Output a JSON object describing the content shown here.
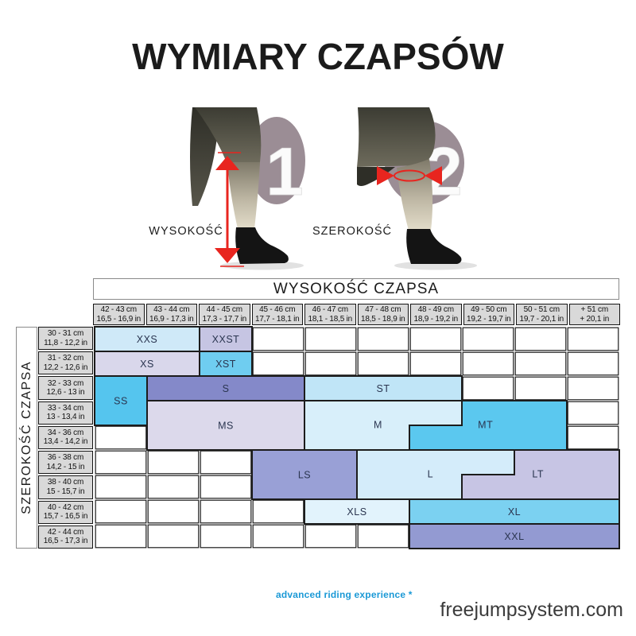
{
  "title": "WYMIARY CZAPSÓW",
  "figures": [
    {
      "number": "1",
      "label": "WYSOKOŚĆ"
    },
    {
      "number": "2",
      "label": "SZEROKOŚĆ"
    }
  ],
  "colors": {
    "accent_red": "#e8251f",
    "circle_mauve": "#9b8d95",
    "header_gray": "#d9d9d9",
    "grid_border": "#1c1c1c",
    "tagline_blue": "#1b99d6"
  },
  "table": {
    "col_header_title": "WYSOKOŚĆ CZAPSA",
    "row_header_title": "SZEROKOŚĆ CZAPSA",
    "columns": [
      {
        "cm": "42 - 43 cm",
        "in": "16,5 - 16,9 in"
      },
      {
        "cm": "43 - 44 cm",
        "in": "16,9 - 17,3 in"
      },
      {
        "cm": "44 - 45 cm",
        "in": "17,3 - 17,7 in"
      },
      {
        "cm": "45 - 46 cm",
        "in": "17,7 - 18,1 in"
      },
      {
        "cm": "46 - 47 cm",
        "in": "18,1 - 18,5 in"
      },
      {
        "cm": "47 - 48 cm",
        "in": "18,5 - 18,9 in"
      },
      {
        "cm": "48 - 49 cm",
        "in": "18,9 - 19,2 in"
      },
      {
        "cm": "49 - 50 cm",
        "in": "19,2 - 19,7 in"
      },
      {
        "cm": "50 - 51 cm",
        "in": "19,7 - 20,1 in"
      },
      {
        "cm": "+ 51 cm",
        "in": "+ 20,1 in"
      }
    ],
    "rows": [
      {
        "cm": "30 - 31 cm",
        "in": "11,8 - 12,2 in"
      },
      {
        "cm": "31 - 32 cm",
        "in": "12,2 - 12,6 in"
      },
      {
        "cm": "32 - 33 cm",
        "in": "12,6 - 13 in"
      },
      {
        "cm": "33 - 34 cm",
        "in": "13 - 13,4 in"
      },
      {
        "cm": "34 - 36 cm",
        "in": "13,4 - 14,2 in"
      },
      {
        "cm": "36 - 38 cm",
        "in": "14,2 - 15 in"
      },
      {
        "cm": "38 - 40 cm",
        "in": "15 - 15,7 in"
      },
      {
        "cm": "40 - 42 cm",
        "in": "15,7 - 16,5 in"
      },
      {
        "cm": "42 - 44 cm",
        "in": "16,5 - 17,3 in"
      }
    ]
  },
  "chart_data": {
    "type": "table",
    "title": "WYMIARY CZAPSÓW",
    "column_axis": "WYSOKOŚĆ CZAPSA (height, cm)",
    "row_axis": "SZEROKOŚĆ CZAPSA (width, cm)",
    "columns_cm": [
      "42-43",
      "43-44",
      "44-45",
      "45-46",
      "46-47",
      "47-48",
      "48-49",
      "49-50",
      "50-51",
      "+51"
    ],
    "rows_cm": [
      "30-31",
      "31-32",
      "32-33",
      "33-34",
      "34-36",
      "36-38",
      "38-40",
      "40-42",
      "42-44"
    ],
    "grid": {
      "cols": 10,
      "rows": 9
    },
    "sizes": [
      {
        "label": "XXS",
        "color": "#cfe9f8",
        "poly": [
          [
            0,
            0
          ],
          [
            2,
            0
          ],
          [
            2,
            1
          ],
          [
            0,
            1
          ]
        ],
        "label_pos": [
          1,
          0.5
        ]
      },
      {
        "label": "XXST",
        "color": "#c6c5e3",
        "poly": [
          [
            2,
            0
          ],
          [
            3,
            0
          ],
          [
            3,
            1
          ],
          [
            2,
            1
          ]
        ],
        "label_pos": [
          2.5,
          0.5
        ]
      },
      {
        "label": "XS",
        "color": "#d9d7eb",
        "poly": [
          [
            0,
            1
          ],
          [
            2,
            1
          ],
          [
            2,
            2
          ],
          [
            0,
            2
          ]
        ],
        "label_pos": [
          1,
          1.5
        ]
      },
      {
        "label": "XST",
        "color": "#6fcdf0",
        "poly": [
          [
            2,
            1
          ],
          [
            3,
            1
          ],
          [
            3,
            2
          ],
          [
            2,
            2
          ]
        ],
        "label_pos": [
          2.5,
          1.5
        ]
      },
      {
        "label": "SS",
        "color": "#55c5ee",
        "poly": [
          [
            0,
            2
          ],
          [
            1,
            2
          ],
          [
            1,
            4
          ],
          [
            0,
            4
          ]
        ],
        "label_pos": [
          0.5,
          3
        ]
      },
      {
        "label": "S",
        "color": "#8489c9",
        "poly": [
          [
            1,
            2
          ],
          [
            4,
            2
          ],
          [
            4,
            3
          ],
          [
            1,
            3
          ]
        ],
        "label_pos": [
          2.5,
          2.5
        ]
      },
      {
        "label": "ST",
        "color": "#c0e5f7",
        "poly": [
          [
            4,
            2
          ],
          [
            7,
            2
          ],
          [
            7,
            3
          ],
          [
            4,
            3
          ]
        ],
        "label_pos": [
          5.5,
          2.5
        ]
      },
      {
        "label": "MS",
        "color": "#dcd9eb",
        "poly": [
          [
            1,
            3
          ],
          [
            4,
            3
          ],
          [
            4,
            5
          ],
          [
            1,
            5
          ]
        ],
        "label_pos": [
          2.5,
          4
        ]
      },
      {
        "label": "M",
        "color": "#d8effa",
        "poly": [
          [
            4,
            3
          ],
          [
            7,
            3
          ],
          [
            7,
            4
          ],
          [
            6,
            4
          ],
          [
            6,
            5
          ],
          [
            4,
            5
          ]
        ],
        "label_pos": [
          5.4,
          3.97
        ]
      },
      {
        "label": "MT",
        "color": "#5bc8ef",
        "poly": [
          [
            7,
            3
          ],
          [
            9,
            3
          ],
          [
            9,
            5
          ],
          [
            6,
            5
          ],
          [
            6,
            4
          ],
          [
            7,
            4
          ]
        ],
        "label_pos": [
          7.45,
          3.97
        ]
      },
      {
        "label": "LS",
        "color": "#99a0d6",
        "poly": [
          [
            3,
            5
          ],
          [
            5,
            5
          ],
          [
            5,
            7
          ],
          [
            3,
            7
          ]
        ],
        "label_pos": [
          4,
          6
        ]
      },
      {
        "label": "L",
        "color": "#d4ecfa",
        "poly": [
          [
            5,
            5
          ],
          [
            8,
            5
          ],
          [
            8,
            6
          ],
          [
            7,
            6
          ],
          [
            7,
            7
          ],
          [
            5,
            7
          ]
        ],
        "label_pos": [
          6.4,
          5.97
        ]
      },
      {
        "label": "LT",
        "color": "#c7c5e4",
        "poly": [
          [
            8,
            5
          ],
          [
            10,
            5
          ],
          [
            10,
            7
          ],
          [
            7,
            7
          ],
          [
            7,
            6
          ],
          [
            8,
            6
          ]
        ],
        "label_pos": [
          8.45,
          5.97
        ]
      },
      {
        "label": "XLS",
        "color": "#e2f3fc",
        "poly": [
          [
            4,
            7
          ],
          [
            6,
            7
          ],
          [
            6,
            8
          ],
          [
            4,
            8
          ]
        ],
        "label_pos": [
          5,
          7.5
        ]
      },
      {
        "label": "XL",
        "color": "#7bd1f1",
        "poly": [
          [
            6,
            7
          ],
          [
            10,
            7
          ],
          [
            10,
            8
          ],
          [
            6,
            8
          ]
        ],
        "label_pos": [
          8,
          7.5
        ]
      },
      {
        "label": "XXL",
        "color": "#939ad2",
        "poly": [
          [
            6,
            8
          ],
          [
            10,
            8
          ],
          [
            10,
            9
          ],
          [
            6,
            9
          ]
        ],
        "label_pos": [
          8,
          8.5
        ]
      }
    ]
  },
  "footer": {
    "tagline": "advanced riding experience *",
    "website": "freejumpsystem.com"
  }
}
